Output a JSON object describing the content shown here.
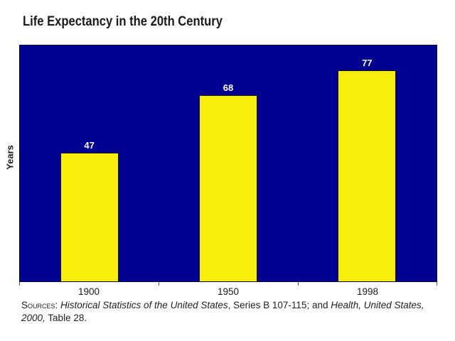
{
  "chart_data": {
    "type": "bar",
    "title": "Life Expectancy in the 20th Century",
    "categories": [
      "1900",
      "1950",
      "1998"
    ],
    "values": [
      47,
      68,
      77
    ],
    "xlabel": "",
    "ylabel": "Years",
    "ylim": [
      0,
      86
    ],
    "grid": false,
    "legend": "none",
    "plot_background": "#000091",
    "bar_color": "#f7ee0d",
    "bar_border_color": "#1a1a1a",
    "value_label_color": "#ffffff",
    "axis_text_color": "#1a1a1a"
  },
  "source_note": {
    "label": "Sources: ",
    "italic_1": "Historical Statistics of the United States",
    "middle": ", Series B 107-115; and ",
    "italic_2_line1": "Health, United States,",
    "italic_2_line2": "2000,",
    "suffix": " Table 28."
  }
}
